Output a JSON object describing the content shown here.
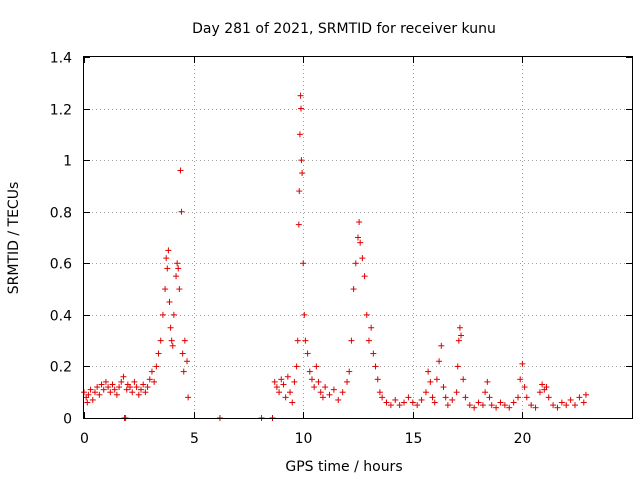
{
  "chart_data": {
    "type": "scatter",
    "title": "Day 281 of 2021, SRMTID for receiver kunu",
    "xlabel": "GPS time / hours",
    "ylabel": "SRMTID / TECUs",
    "xlim": [
      0,
      25
    ],
    "ylim": [
      0,
      1.4
    ],
    "xticks": [
      0,
      5,
      10,
      15,
      20
    ],
    "yticks": [
      0,
      0.2,
      0.4,
      0.6,
      0.8,
      1,
      1.2,
      1.4
    ],
    "xtick_labels": [
      "0",
      "5",
      "10",
      "15",
      "20"
    ],
    "ytick_labels": [
      "0",
      "0.2",
      "0.4",
      "0.6",
      "0.8",
      "1",
      "1.2",
      "1.4"
    ],
    "grid": true,
    "marker": "+",
    "color": "#e00000",
    "series": [
      {
        "name": "SRMTID",
        "points": [
          [
            0.0,
            0.1
          ],
          [
            0.1,
            0.08
          ],
          [
            0.15,
            0.06
          ],
          [
            0.2,
            0.09
          ],
          [
            0.3,
            0.11
          ],
          [
            0.4,
            0.07
          ],
          [
            0.5,
            0.1
          ],
          [
            0.6,
            0.12
          ],
          [
            0.7,
            0.09
          ],
          [
            0.8,
            0.13
          ],
          [
            0.9,
            0.11
          ],
          [
            1.0,
            0.14
          ],
          [
            1.1,
            0.12
          ],
          [
            1.2,
            0.1
          ],
          [
            1.3,
            0.13
          ],
          [
            1.4,
            0.11
          ],
          [
            1.5,
            0.09
          ],
          [
            1.6,
            0.12
          ],
          [
            1.7,
            0.14
          ],
          [
            1.8,
            0.16
          ],
          [
            1.85,
            0.0
          ],
          [
            1.9,
            0.0
          ],
          [
            1.95,
            0.11
          ],
          [
            2.0,
            0.13
          ],
          [
            2.1,
            0.12
          ],
          [
            2.2,
            0.1
          ],
          [
            2.3,
            0.14
          ],
          [
            2.4,
            0.12
          ],
          [
            2.5,
            0.09
          ],
          [
            2.6,
            0.11
          ],
          [
            2.7,
            0.13
          ],
          [
            2.8,
            0.1
          ],
          [
            2.9,
            0.12
          ],
          [
            3.0,
            0.15
          ],
          [
            3.1,
            0.18
          ],
          [
            3.2,
            0.14
          ],
          [
            3.3,
            0.2
          ],
          [
            3.4,
            0.25
          ],
          [
            3.5,
            0.3
          ],
          [
            3.6,
            0.4
          ],
          [
            3.7,
            0.5
          ],
          [
            3.75,
            0.62
          ],
          [
            3.8,
            0.58
          ],
          [
            3.85,
            0.65
          ],
          [
            3.9,
            0.45
          ],
          [
            3.95,
            0.35
          ],
          [
            4.0,
            0.3
          ],
          [
            4.05,
            0.28
          ],
          [
            4.1,
            0.4
          ],
          [
            4.2,
            0.55
          ],
          [
            4.25,
            0.6
          ],
          [
            4.3,
            0.58
          ],
          [
            4.35,
            0.5
          ],
          [
            4.4,
            0.96
          ],
          [
            4.45,
            0.8
          ],
          [
            4.5,
            0.25
          ],
          [
            4.55,
            0.18
          ],
          [
            4.6,
            0.3
          ],
          [
            4.7,
            0.22
          ],
          [
            4.75,
            0.08
          ],
          [
            6.2,
            0.0
          ],
          [
            8.1,
            0.0
          ],
          [
            8.6,
            0.0
          ],
          [
            8.7,
            0.14
          ],
          [
            8.8,
            0.12
          ],
          [
            8.9,
            0.1
          ],
          [
            9.0,
            0.15
          ],
          [
            9.1,
            0.13
          ],
          [
            9.2,
            0.08
          ],
          [
            9.3,
            0.16
          ],
          [
            9.4,
            0.1
          ],
          [
            9.5,
            0.06
          ],
          [
            9.6,
            0.14
          ],
          [
            9.7,
            0.2
          ],
          [
            9.75,
            0.3
          ],
          [
            9.8,
            0.75
          ],
          [
            9.82,
            0.88
          ],
          [
            9.85,
            1.1
          ],
          [
            9.88,
            1.25
          ],
          [
            9.9,
            1.2
          ],
          [
            9.92,
            1.0
          ],
          [
            9.95,
            0.95
          ],
          [
            10.0,
            0.6
          ],
          [
            10.05,
            0.4
          ],
          [
            10.1,
            0.3
          ],
          [
            10.2,
            0.25
          ],
          [
            10.3,
            0.18
          ],
          [
            10.4,
            0.15
          ],
          [
            10.5,
            0.12
          ],
          [
            10.6,
            0.2
          ],
          [
            10.7,
            0.14
          ],
          [
            10.8,
            0.1
          ],
          [
            10.9,
            0.08
          ],
          [
            11.0,
            0.12
          ],
          [
            11.2,
            0.09
          ],
          [
            11.4,
            0.11
          ],
          [
            11.6,
            0.07
          ],
          [
            11.8,
            0.1
          ],
          [
            12.0,
            0.14
          ],
          [
            12.1,
            0.18
          ],
          [
            12.2,
            0.3
          ],
          [
            12.3,
            0.5
          ],
          [
            12.4,
            0.6
          ],
          [
            12.5,
            0.7
          ],
          [
            12.55,
            0.76
          ],
          [
            12.6,
            0.68
          ],
          [
            12.7,
            0.62
          ],
          [
            12.8,
            0.55
          ],
          [
            12.9,
            0.4
          ],
          [
            13.0,
            0.3
          ],
          [
            13.1,
            0.35
          ],
          [
            13.2,
            0.25
          ],
          [
            13.3,
            0.2
          ],
          [
            13.4,
            0.15
          ],
          [
            13.5,
            0.1
          ],
          [
            13.6,
            0.08
          ],
          [
            13.8,
            0.06
          ],
          [
            14.0,
            0.05
          ],
          [
            14.2,
            0.07
          ],
          [
            14.4,
            0.05
          ],
          [
            14.6,
            0.06
          ],
          [
            14.8,
            0.08
          ],
          [
            15.0,
            0.06
          ],
          [
            15.2,
            0.05
          ],
          [
            15.4,
            0.07
          ],
          [
            15.6,
            0.1
          ],
          [
            15.7,
            0.18
          ],
          [
            15.8,
            0.14
          ],
          [
            15.9,
            0.08
          ],
          [
            16.0,
            0.06
          ],
          [
            16.1,
            0.15
          ],
          [
            16.2,
            0.22
          ],
          [
            16.3,
            0.28
          ],
          [
            16.4,
            0.12
          ],
          [
            16.5,
            0.08
          ],
          [
            16.6,
            0.05
          ],
          [
            16.8,
            0.07
          ],
          [
            17.0,
            0.1
          ],
          [
            17.05,
            0.2
          ],
          [
            17.1,
            0.3
          ],
          [
            17.15,
            0.35
          ],
          [
            17.2,
            0.32
          ],
          [
            17.3,
            0.15
          ],
          [
            17.4,
            0.08
          ],
          [
            17.6,
            0.05
          ],
          [
            17.8,
            0.04
          ],
          [
            18.0,
            0.06
          ],
          [
            18.2,
            0.05
          ],
          [
            18.3,
            0.1
          ],
          [
            18.4,
            0.14
          ],
          [
            18.5,
            0.08
          ],
          [
            18.6,
            0.05
          ],
          [
            18.8,
            0.04
          ],
          [
            19.0,
            0.06
          ],
          [
            19.2,
            0.05
          ],
          [
            19.4,
            0.04
          ],
          [
            19.6,
            0.06
          ],
          [
            19.8,
            0.08
          ],
          [
            19.9,
            0.15
          ],
          [
            20.0,
            0.21
          ],
          [
            20.1,
            0.12
          ],
          [
            20.2,
            0.08
          ],
          [
            20.4,
            0.05
          ],
          [
            20.6,
            0.04
          ],
          [
            20.8,
            0.1
          ],
          [
            20.9,
            0.13
          ],
          [
            21.0,
            0.11
          ],
          [
            21.1,
            0.12
          ],
          [
            21.2,
            0.08
          ],
          [
            21.4,
            0.05
          ],
          [
            21.6,
            0.04
          ],
          [
            21.8,
            0.06
          ],
          [
            22.0,
            0.05
          ],
          [
            22.2,
            0.07
          ],
          [
            22.4,
            0.05
          ],
          [
            22.6,
            0.08
          ],
          [
            22.8,
            0.06
          ],
          [
            22.9,
            0.09
          ]
        ]
      }
    ]
  }
}
